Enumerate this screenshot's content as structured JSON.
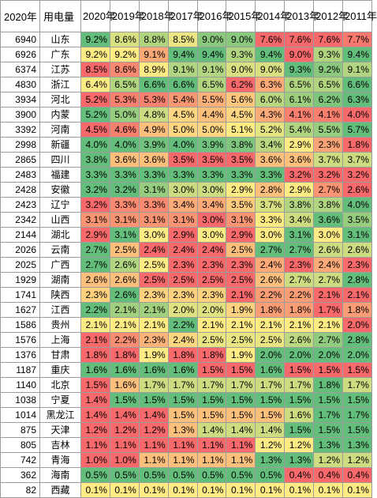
{
  "header": {
    "kwh": "2020年",
    "name": "用电量",
    "years": [
      "2020年",
      "2019年",
      "2018年",
      "2017年",
      "2016年",
      "2015年",
      "2014年",
      "2013年",
      "2012年",
      "2011年"
    ]
  },
  "rows": [
    {
      "kwh": "6940",
      "province": "山东",
      "values": [
        "9.2%",
        "8.6%",
        "8.8%",
        "8.5%",
        "9.0%",
        "9.0%",
        "7.6%",
        "7.6%",
        "7.6%",
        "7.7%"
      ]
    },
    {
      "kwh": "6926",
      "province": "广东",
      "values": [
        "9.2%",
        "9.2%",
        "9.1%",
        "9.4%",
        "9.4%",
        "9.3%",
        "9.4%",
        "9.0%",
        "9.3%",
        "9.4%"
      ]
    },
    {
      "kwh": "6374",
      "province": "江苏",
      "values": [
        "8.5%",
        "8.6%",
        "8.9%",
        "9.1%",
        "9.1%",
        "9.0%",
        "9.0%",
        "9.3%",
        "9.2%",
        "9.1%"
      ]
    },
    {
      "kwh": "4830",
      "province": "浙江",
      "values": [
        "6.4%",
        "6.5%",
        "6.6%",
        "6.6%",
        "6.5%",
        "6.2%",
        "6.3%",
        "6.5%",
        "6.5%",
        "6.6%"
      ]
    },
    {
      "kwh": "3934",
      "province": "河北",
      "values": [
        "5.2%",
        "5.3%",
        "5.3%",
        "5.4%",
        "5.5%",
        "5.6%",
        "6.0%",
        "6.1%",
        "6.2%",
        "6.3%"
      ]
    },
    {
      "kwh": "3900",
      "province": "内蒙",
      "values": [
        "5.2%",
        "5.0%",
        "4.8%",
        "4.5%",
        "4.4%",
        "4.5%",
        "4.3%",
        "4.1%",
        "4.1%",
        "4.0%"
      ]
    },
    {
      "kwh": "3392",
      "province": "河南",
      "values": [
        "4.5%",
        "4.6%",
        "4.9%",
        "5.0%",
        "5.0%",
        "5.1%",
        "5.2%",
        "5.4%",
        "5.5%",
        "5.7%"
      ]
    },
    {
      "kwh": "2998",
      "province": "新疆",
      "values": [
        "4.0%",
        "4.0%",
        "3.9%",
        "4.0%",
        "3.9%",
        "3.8%",
        "3.4%",
        "2.9%",
        "2.3%",
        "1.8%"
      ]
    },
    {
      "kwh": "2865",
      "province": "四川",
      "values": [
        "3.8%",
        "3.6%",
        "3.6%",
        "3.5%",
        "3.5%",
        "3.5%",
        "3.6%",
        "3.6%",
        "3.7%",
        "3.7%"
      ]
    },
    {
      "kwh": "2483",
      "province": "福建",
      "values": [
        "3.3%",
        "3.3%",
        "3.3%",
        "3.3%",
        "3.3%",
        "3.3%",
        "3.3%",
        "3.2%",
        "3.2%",
        "3.2%"
      ]
    },
    {
      "kwh": "2428",
      "province": "安徽",
      "values": [
        "3.2%",
        "3.2%",
        "3.1%",
        "3.0%",
        "3.0%",
        "2.9%",
        "2.8%",
        "2.9%",
        "2.7%",
        "2.6%"
      ]
    },
    {
      "kwh": "2423",
      "province": "辽宁",
      "values": [
        "3.2%",
        "3.3%",
        "3.3%",
        "3.4%",
        "3.4%",
        "3.5%",
        "3.7%",
        "3.8%",
        "3.8%",
        "4.0%"
      ]
    },
    {
      "kwh": "2342",
      "province": "山西",
      "values": [
        "3.1%",
        "3.1%",
        "3.1%",
        "3.1%",
        "3.0%",
        "3.1%",
        "3.3%",
        "3.4%",
        "3.6%",
        "3.5%"
      ]
    },
    {
      "kwh": "2144",
      "province": "湖北",
      "values": [
        "2.9%",
        "3.1%",
        "3.0%",
        "2.9%",
        "3.0%",
        "2.9%",
        "3.0%",
        "3.1%",
        "3.0%",
        "3.1%"
      ]
    },
    {
      "kwh": "2026",
      "province": "云南",
      "values": [
        "2.7%",
        "2.5%",
        "2.4%",
        "2.4%",
        "2.4%",
        "2.5%",
        "2.7%",
        "2.7%",
        "2.6%",
        "2.6%"
      ]
    },
    {
      "kwh": "2025",
      "province": "广西",
      "values": [
        "2.7%",
        "2.6%",
        "2.5%",
        "2.3%",
        "2.3%",
        "2.3%",
        "2.4%",
        "2.3%",
        "2.4%",
        "2.3%"
      ]
    },
    {
      "kwh": "1929",
      "province": "湖南",
      "values": [
        "2.6%",
        "2.6%",
        "2.5%",
        "2.5%",
        "2.5%",
        "2.5%",
        "2.6%",
        "2.7%",
        "2.7%",
        "2.8%"
      ]
    },
    {
      "kwh": "1741",
      "province": "陕西",
      "values": [
        "2.3%",
        "2.6%",
        "2.3%",
        "2.3%",
        "2.3%",
        "2.1%",
        "2.2%",
        "2.2%",
        "2.1%",
        "2.1%"
      ]
    },
    {
      "kwh": "1627",
      "province": "江西",
      "values": [
        "2.2%",
        "2.1%",
        "2.1%",
        "2.0%",
        "2.0%",
        "1.9%",
        "1.8%",
        "1.8%",
        "1.7%",
        "1.8%"
      ]
    },
    {
      "kwh": "1586",
      "province": "贵州",
      "values": [
        "2.1%",
        "2.1%",
        "2.1%",
        "2.2%",
        "2.1%",
        "2.1%",
        "2.1%",
        "2.1%",
        "2.1%",
        "2.0%"
      ]
    },
    {
      "kwh": "1576",
      "province": "上海",
      "values": [
        "2.1%",
        "2.2%",
        "2.3%",
        "2.4%",
        "2.5%",
        "2.5%",
        "2.5%",
        "2.6%",
        "2.7%",
        "2.8%"
      ]
    },
    {
      "kwh": "1376",
      "province": "甘肃",
      "values": [
        "1.8%",
        "1.8%",
        "1.9%",
        "1.8%",
        "1.8%",
        "1.9%",
        "2.0%",
        "2.0%",
        "2.0%",
        "2.0%"
      ]
    },
    {
      "kwh": "1187",
      "province": "重庆",
      "values": [
        "1.6%",
        "1.6%",
        "1.6%",
        "1.6%",
        "1.5%",
        "1.5%",
        "1.6%",
        "1.5%",
        "1.5%",
        "1.5%"
      ]
    },
    {
      "kwh": "1140",
      "province": "北京",
      "values": [
        "1.5%",
        "1.6%",
        "1.7%",
        "1.7%",
        "1.7%",
        "1.7%",
        "1.7%",
        "1.7%",
        "1.8%",
        "1.7%"
      ]
    },
    {
      "kwh": "1038",
      "province": "宁夏",
      "values": [
        "1.4%",
        "1.5%",
        "1.5%",
        "1.5%",
        "1.5%",
        "1.5%",
        "1.5%",
        "1.5%",
        "1.5%",
        "1.5%"
      ]
    },
    {
      "kwh": "1014",
      "province": "黑龙江",
      "values": [
        "1.4%",
        "1.4%",
        "1.4%",
        "1.5%",
        "1.5%",
        "1.5%",
        "1.5%",
        "1.6%",
        "1.7%",
        "1.7%"
      ]
    },
    {
      "kwh": "875",
      "province": "天津",
      "values": [
        "1.2%",
        "1.2%",
        "1.2%",
        "1.3%",
        "1.4%",
        "1.4%",
        "1.4%",
        "1.5%",
        "1.5%",
        "1.5%"
      ]
    },
    {
      "kwh": "805",
      "province": "吉林",
      "values": [
        "1.1%",
        "1.1%",
        "1.1%",
        "1.1%",
        "1.1%",
        "1.1%",
        "1.2%",
        "1.2%",
        "1.3%",
        "1.3%"
      ]
    },
    {
      "kwh": "742",
      "province": "青海",
      "values": [
        "1.0%",
        "1.0%",
        "1.1%",
        "1.1%",
        "1.1%",
        "1.1%",
        "1.3%",
        "1.3%",
        "1.2%",
        "1.2%"
      ]
    },
    {
      "kwh": "362",
      "province": "海南",
      "values": [
        "0.5%",
        "0.5%",
        "0.5%",
        "0.5%",
        "0.5%",
        "0.5%",
        "0.5%",
        "0.4%",
        "0.4%",
        "0.4%"
      ]
    },
    {
      "kwh": "82",
      "province": "西藏",
      "values": [
        "0.1%",
        "0.1%",
        "0.1%",
        "0.1%",
        "0.1%",
        "0.1%",
        "0.1%",
        "0.1%",
        "0.1%",
        "0.1%"
      ]
    }
  ],
  "scale_colors": {
    "low": "#f8696b",
    "mid": "#ffeb84",
    "high": "#63be7b"
  }
}
